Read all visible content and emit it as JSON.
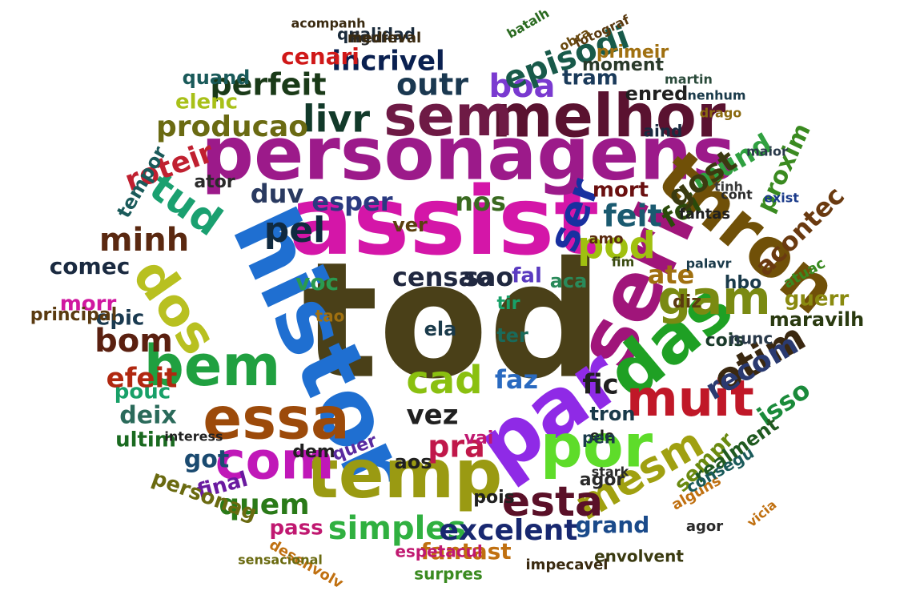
{
  "words": [
    {
      "text": "tod",
      "color": "#4a4018"
    },
    {
      "text": "assist",
      "color": "#d416a8"
    },
    {
      "text": "personagens",
      "color": "#9c1a8a"
    },
    {
      "text": "histor",
      "color": "#1f6fd1"
    },
    {
      "text": "seri",
      "color": "#a0157a"
    },
    {
      "text": "par",
      "color": "#8f2ae6"
    },
    {
      "text": "das",
      "color": "#1fa024"
    },
    {
      "text": "melhor",
      "color": "#5a1230"
    },
    {
      "text": "sem",
      "color": "#6e1a45"
    },
    {
      "text": "thron",
      "color": "#705008"
    },
    {
      "text": "temp",
      "color": "#9a9a12"
    },
    {
      "text": "por",
      "color": "#5edc2a"
    },
    {
      "text": "essa",
      "color": "#9c4a0a"
    },
    {
      "text": "bem",
      "color": "#20a040"
    },
    {
      "text": "com",
      "color": "#c018b8"
    },
    {
      "text": "dos",
      "color": "#b8c020"
    },
    {
      "text": "muit",
      "color": "#c01828"
    },
    {
      "text": "gam",
      "color": "#7a8a12"
    },
    {
      "text": "otim",
      "color": "#3a2810"
    },
    {
      "text": "livr",
      "color": "#123a2a"
    },
    {
      "text": "perfeit",
      "color": "#1a3a18"
    },
    {
      "text": "outr",
      "color": "#1a3850"
    },
    {
      "text": "boa",
      "color": "#7a3ad0"
    },
    {
      "text": "episodi",
      "color": "#185a4a"
    },
    {
      "text": "incrivel",
      "color": "#0a2050"
    },
    {
      "text": "cenari",
      "color": "#d01818"
    },
    {
      "text": "tud",
      "color": "#1aa070"
    },
    {
      "text": "ser",
      "color": "#1830a0"
    },
    {
      "text": "pel",
      "color": "#102a40"
    },
    {
      "text": "cad",
      "color": "#8ac010"
    },
    {
      "text": "mesm",
      "color": "#a0a010"
    },
    {
      "text": "esta",
      "color": "#5a1028"
    },
    {
      "text": "simples",
      "color": "#30b040"
    },
    {
      "text": "excelent",
      "color": "#182870"
    },
    {
      "text": "quem",
      "color": "#2a7a18"
    },
    {
      "text": "producao",
      "color": "#6a6a12"
    },
    {
      "text": "roteir",
      "color": "#c02030"
    },
    {
      "text": "minh",
      "color": "#5a2810"
    },
    {
      "text": "bom",
      "color": "#5a2010"
    },
    {
      "text": "efeit",
      "color": "#b02810"
    },
    {
      "text": "feit",
      "color": "#1a5a70"
    },
    {
      "text": "censao",
      "color": "#202840"
    },
    {
      "text": "foi",
      "color": "#2a4a0a"
    },
    {
      "text": "pod",
      "color": "#a0c010"
    },
    {
      "text": "vez",
      "color": "#202020"
    },
    {
      "text": "fic",
      "color": "#202020"
    },
    {
      "text": "pra",
      "color": "#c0184a"
    },
    {
      "text": "faz",
      "color": "#2a6ac0"
    },
    {
      "text": "mund",
      "color": "#30a040"
    },
    {
      "text": "proxim",
      "color": "#3a8a20"
    },
    {
      "text": "acontec",
      "color": "#6a3a10"
    },
    {
      "text": "recom",
      "color": "#2a3a70"
    },
    {
      "text": "isso",
      "color": "#1a8a3a"
    },
    {
      "text": "got",
      "color": "#1a4a70"
    },
    {
      "text": "deix",
      "color": "#2a6a5a"
    },
    {
      "text": "pouc",
      "color": "#18a068"
    },
    {
      "text": "ultim",
      "color": "#1a6a20"
    },
    {
      "text": "final",
      "color": "#6a1aa0"
    },
    {
      "text": "personag",
      "color": "#6a6a10"
    },
    {
      "text": "fantast",
      "color": "#c07010"
    },
    {
      "text": "sempr",
      "color": "#6a8a10"
    },
    {
      "text": "realment",
      "color": "#205a20"
    },
    {
      "text": "grand",
      "color": "#1a4a8a"
    },
    {
      "text": "tron",
      "color": "#1a3a4a"
    },
    {
      "text": "agor",
      "color": "#2a2a2a"
    },
    {
      "text": "epic",
      "color": "#1a3a50"
    },
    {
      "text": "morr",
      "color": "#d018a0"
    },
    {
      "text": "comec",
      "color": "#1a2a40"
    },
    {
      "text": "voc",
      "color": "#2a9a50"
    },
    {
      "text": "duv",
      "color": "#2a3a60"
    },
    {
      "text": "esper",
      "color": "#2a3a80"
    },
    {
      "text": "nos",
      "color": "#3a6a20"
    },
    {
      "text": "ver",
      "color": "#5a4010"
    },
    {
      "text": "ate",
      "color": "#a07010"
    },
    {
      "text": "gost",
      "color": "#3a3a10"
    },
    {
      "text": "mort",
      "color": "#6a1010"
    },
    {
      "text": "fantas",
      "color": "#202020"
    },
    {
      "text": "guerr",
      "color": "#8a8a10"
    },
    {
      "text": "maravilh",
      "color": "#2a3a10"
    },
    {
      "text": "elenc",
      "color": "#a8c018"
    },
    {
      "text": "enred",
      "color": "#202020"
    },
    {
      "text": "tram",
      "color": "#1a3a5a"
    },
    {
      "text": "moment",
      "color": "#2a3a2a"
    },
    {
      "text": "primeir",
      "color": "#a07010"
    },
    {
      "text": "qualidad",
      "color": "#1a2a3a"
    },
    {
      "text": "quand",
      "color": "#1a5a5a"
    },
    {
      "text": "ator",
      "color": "#2a2a2a"
    },
    {
      "text": "tempor",
      "color": "#1a5a5a"
    },
    {
      "text": "fal",
      "color": "#5a3ac0"
    },
    {
      "text": "ele",
      "color": "#202020"
    },
    {
      "text": "ela",
      "color": "#1a3a4a"
    },
    {
      "text": "sao",
      "color": "#202840"
    },
    {
      "text": "ter",
      "color": "#1a6a5a"
    },
    {
      "text": "tir",
      "color": "#18a068"
    },
    {
      "text": "tao",
      "color": "#a07010"
    },
    {
      "text": "pass",
      "color": "#c01870"
    },
    {
      "text": "pois",
      "color": "#202020"
    },
    {
      "text": "vai",
      "color": "#c01870"
    },
    {
      "text": "aos",
      "color": "#202020"
    },
    {
      "text": "dem",
      "color": "#202020"
    },
    {
      "text": "quer",
      "color": "#5a2aa0"
    },
    {
      "text": "pen",
      "color": "#1a3a4a"
    },
    {
      "text": "hbo",
      "color": "#1a3a4a"
    },
    {
      "text": "diz",
      "color": "#5a3a10"
    },
    {
      "text": "aca",
      "color": "#2a8a5a"
    },
    {
      "text": "cois",
      "color": "#1a3a2a"
    },
    {
      "text": "nunc",
      "color": "#2a3a4a"
    },
    {
      "text": "aind",
      "color": "#1a2a40"
    },
    {
      "text": "espetacul",
      "color": "#c01870"
    },
    {
      "text": "envolvent",
      "color": "#3a3a10"
    },
    {
      "text": "surpres",
      "color": "#3a8a20"
    },
    {
      "text": "impecavel",
      "color": "#3a2a10"
    },
    {
      "text": "desenvolv",
      "color": "#c07010"
    },
    {
      "text": "sensacional",
      "color": "#6a6a10"
    },
    {
      "text": "principal",
      "color": "#5a3a10"
    },
    {
      "text": "interess",
      "color": "#202020"
    },
    {
      "text": "vicia",
      "color": "#c07010"
    },
    {
      "text": "alguns",
      "color": "#c07010"
    },
    {
      "text": "consegu",
      "color": "#1a5a5a"
    },
    {
      "text": "stark",
      "color": "#2a2a2a"
    },
    {
      "text": "atuac",
      "color": "#3a8a20"
    },
    {
      "text": "figurin",
      "color": "#2a2a2a"
    },
    {
      "text": "medieval",
      "color": "#3a2a10"
    },
    {
      "text": "acompanh",
      "color": "#3a2a10"
    },
    {
      "text": "batalh",
      "color": "#2a6a20"
    },
    {
      "text": "fotograf",
      "color": "#5a3a10"
    },
    {
      "text": "obra",
      "color": "#6a4a10"
    },
    {
      "text": "martin",
      "color": "#2a4a3a"
    },
    {
      "text": "nenhum",
      "color": "#1a3a4a"
    },
    {
      "text": "drago",
      "color": "#8a6a10"
    },
    {
      "text": "maior",
      "color": "#2a3a4a"
    },
    {
      "text": "exist",
      "color": "#1a3a8a"
    },
    {
      "text": "cont",
      "color": "#2a2a2a"
    },
    {
      "text": "amo",
      "color": "#5a2a10"
    },
    {
      "text": "fim",
      "color": "#3a4a10"
    },
    {
      "text": "tinh",
      "color": "#3a3a3a"
    },
    {
      "text": "palavr",
      "color": "#1a3a4a"
    },
    {
      "text": "agor",
      "color": "#2a2a2a"
    }
  ]
}
